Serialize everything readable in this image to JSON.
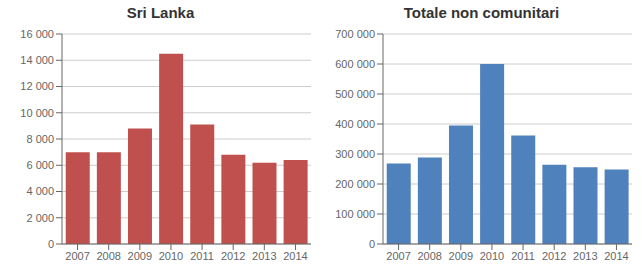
{
  "chart_data": [
    {
      "type": "bar",
      "title": "Sri Lanka",
      "categories": [
        "2007",
        "2008",
        "2009",
        "2010",
        "2011",
        "2012",
        "2013",
        "2014"
      ],
      "values": [
        7000,
        7000,
        8800,
        14500,
        9100,
        6800,
        6200,
        6400
      ],
      "color": "#c0504d",
      "ylim": [
        0,
        16000
      ],
      "yticks": [
        0,
        {
          "value": 2000,
          "label": "2 000"
        },
        {
          "value": 4000,
          "label": "4 000"
        },
        {
          "value": 6000,
          "label": "6 000"
        },
        {
          "value": 8000,
          "label": "8 000"
        },
        {
          "value": 10000,
          "label": "10 000"
        },
        {
          "value": 12000,
          "label": "12 000"
        },
        {
          "value": 14000,
          "label": "14 000"
        },
        {
          "value": 16000,
          "label": "16 000"
        }
      ],
      "grid": true
    },
    {
      "type": "bar",
      "title": "Totale non comunitari",
      "categories": [
        "2007",
        "2008",
        "2009",
        "2010",
        "2011",
        "2012",
        "2013",
        "2014"
      ],
      "values": [
        268000,
        288000,
        395000,
        600000,
        362000,
        264000,
        256000,
        248000
      ],
      "color": "#4f81bd",
      "ylim": [
        0,
        700000
      ],
      "yticks": [
        0,
        {
          "value": 100000,
          "label": "100 000"
        },
        {
          "value": 200000,
          "label": "200 000"
        },
        {
          "value": 300000,
          "label": "300 000"
        },
        {
          "value": 400000,
          "label": "400 000"
        },
        {
          "value": 500000,
          "label": "500 000"
        },
        {
          "value": 600000,
          "label": "600 000"
        },
        {
          "value": 700000,
          "label": "700 000"
        }
      ],
      "grid": true
    }
  ]
}
